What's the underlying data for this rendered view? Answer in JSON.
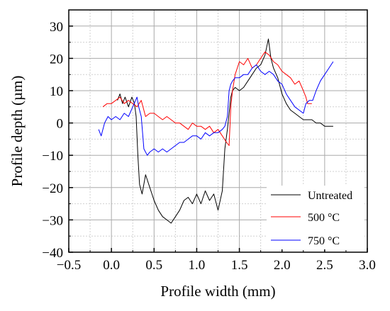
{
  "chart_data": {
    "type": "line",
    "xlabel": "Profile width (mm)",
    "ylabel": "Profile depth (µm)",
    "xlim": [
      -0.5,
      3.0
    ],
    "ylim": [
      -40,
      35
    ],
    "xticks": [
      -0.5,
      0.0,
      0.5,
      1.0,
      1.5,
      2.0,
      2.5,
      3.0
    ],
    "xtick_labels": [
      "−0.5",
      "0.0",
      "0.5",
      "1.0",
      "1.5",
      "2.0",
      "2.5",
      "3.0"
    ],
    "yticks": [
      -40,
      -30,
      -20,
      -10,
      0,
      10,
      20,
      30
    ],
    "ytick_labels": [
      "−40",
      "−30",
      "−20",
      "−10",
      "0",
      "10",
      "20",
      "30"
    ],
    "grid": true,
    "legend_position": "bottom-right",
    "series": [
      {
        "name": "Untreated",
        "color": "#000000",
        "x": [
          0.07,
          0.1,
          0.13,
          0.16,
          0.2,
          0.24,
          0.27,
          0.29,
          0.31,
          0.33,
          0.36,
          0.4,
          0.45,
          0.5,
          0.55,
          0.6,
          0.65,
          0.7,
          0.75,
          0.8,
          0.85,
          0.9,
          0.95,
          1.0,
          1.05,
          1.1,
          1.15,
          1.2,
          1.25,
          1.3,
          1.33,
          1.36,
          1.38,
          1.4,
          1.42,
          1.45,
          1.5,
          1.55,
          1.6,
          1.65,
          1.7,
          1.75,
          1.8,
          1.84,
          1.87,
          1.9,
          1.95,
          2.0,
          2.05,
          2.1,
          2.15,
          2.2,
          2.25,
          2.3,
          2.35,
          2.4,
          2.45,
          2.5,
          2.52,
          2.56,
          2.6
        ],
        "y": [
          7,
          9,
          6,
          8,
          5,
          8,
          6,
          2,
          -10,
          -19,
          -22,
          -16,
          -20,
          -24,
          -27,
          -29,
          -30,
          -31,
          -29,
          -27,
          -24,
          -23,
          -25,
          -22,
          -25,
          -21,
          -24,
          -22,
          -27,
          -21,
          -8,
          -2,
          3,
          8,
          10,
          11,
          10,
          11,
          13,
          15,
          17,
          18,
          21,
          26,
          20,
          17,
          14,
          9,
          6,
          4,
          3,
          2,
          1,
          1,
          1,
          0,
          0,
          -1,
          -1,
          -1,
          -1
        ]
      },
      {
        "name": "500 °C",
        "color": "#ff0000",
        "x": [
          -0.1,
          -0.05,
          0.0,
          0.05,
          0.1,
          0.15,
          0.2,
          0.25,
          0.3,
          0.35,
          0.4,
          0.45,
          0.5,
          0.55,
          0.6,
          0.65,
          0.7,
          0.75,
          0.8,
          0.85,
          0.9,
          0.95,
          1.0,
          1.05,
          1.1,
          1.15,
          1.2,
          1.25,
          1.3,
          1.35,
          1.38,
          1.4,
          1.42,
          1.45,
          1.5,
          1.55,
          1.6,
          1.65,
          1.7,
          1.75,
          1.8,
          1.85,
          1.9,
          1.95,
          2.0,
          2.05,
          2.1,
          2.15,
          2.2,
          2.25,
          2.28,
          2.3,
          2.35
        ],
        "y": [
          5,
          6,
          6,
          7,
          8,
          6,
          7,
          6,
          5,
          7,
          2,
          3,
          3,
          2,
          1,
          2,
          1,
          0,
          0,
          -1,
          -2,
          0,
          -1,
          -1,
          -2,
          -1,
          -3,
          -2,
          -4,
          -6,
          -7,
          5,
          10,
          15,
          19,
          18,
          20,
          17,
          18,
          20,
          22,
          21,
          19,
          18,
          16,
          15,
          14,
          12,
          13,
          10,
          8,
          6,
          6
        ]
      },
      {
        "name": "750 °C",
        "color": "#0000ff",
        "x": [
          -0.15,
          -0.12,
          -0.08,
          -0.04,
          0.0,
          0.05,
          0.1,
          0.15,
          0.2,
          0.25,
          0.3,
          0.32,
          0.35,
          0.38,
          0.42,
          0.45,
          0.5,
          0.55,
          0.6,
          0.65,
          0.7,
          0.75,
          0.8,
          0.85,
          0.9,
          0.95,
          1.0,
          1.05,
          1.1,
          1.15,
          1.2,
          1.25,
          1.3,
          1.33,
          1.36,
          1.38,
          1.4,
          1.42,
          1.45,
          1.5,
          1.55,
          1.6,
          1.65,
          1.7,
          1.75,
          1.8,
          1.85,
          1.9,
          1.95,
          2.0,
          2.05,
          2.1,
          2.15,
          2.2,
          2.25,
          2.28,
          2.32,
          2.36,
          2.4,
          2.45,
          2.5,
          2.55,
          2.6
        ],
        "y": [
          -2,
          -4,
          0,
          2,
          1,
          2,
          1,
          3,
          2,
          5,
          8,
          5,
          2,
          -8,
          -10,
          -9,
          -8,
          -9,
          -8,
          -9,
          -8,
          -7,
          -6,
          -6,
          -5,
          -4,
          -4,
          -5,
          -3,
          -4,
          -3,
          -3,
          -2,
          -1,
          2,
          10,
          12,
          13,
          14,
          14,
          15,
          15,
          17,
          18,
          16,
          15,
          16,
          15,
          13,
          12,
          9,
          7,
          5,
          4,
          3,
          6,
          7,
          7,
          10,
          13,
          15,
          17,
          19
        ]
      }
    ]
  }
}
